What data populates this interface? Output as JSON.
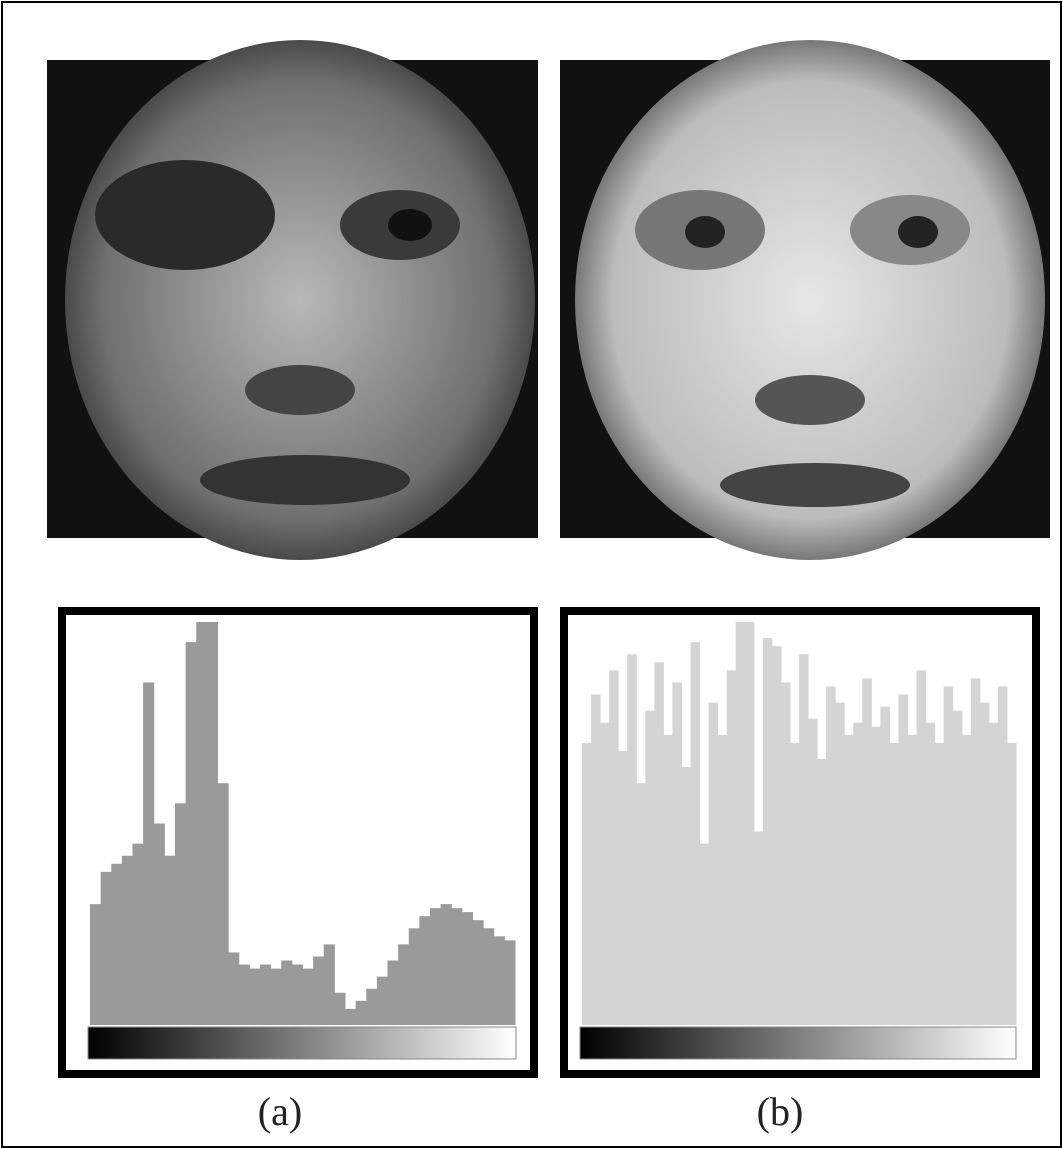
{
  "captions": [
    "(a)",
    "(b)"
  ],
  "chart_data": [
    {
      "type": "bar",
      "color": "#9a9a9a",
      "ylim": [
        0,
        100
      ],
      "categories": [
        null,
        null,
        null,
        null,
        null,
        null,
        null,
        null,
        null,
        null,
        null,
        null,
        null,
        null,
        null,
        null,
        null,
        null,
        null,
        null,
        null,
        null,
        null,
        null,
        null,
        null,
        null,
        null,
        null,
        null,
        null,
        null,
        null,
        null,
        null,
        null,
        null,
        null,
        null,
        null
      ],
      "values": [
        30,
        38,
        40,
        42,
        45,
        85,
        50,
        42,
        55,
        95,
        100,
        100,
        60,
        18,
        15,
        14,
        15,
        14,
        16,
        15,
        14,
        17,
        20,
        8,
        4,
        6,
        9,
        12,
        16,
        20,
        24,
        27,
        29,
        30,
        29,
        28,
        26,
        24,
        22,
        21
      ]
    },
    {
      "type": "bar",
      "color": "#d4d4d4",
      "ylim": [
        0,
        100
      ],
      "categories": [
        null,
        null,
        null,
        null,
        null,
        null,
        null,
        null,
        null,
        null,
        null,
        null,
        null,
        null,
        null,
        null,
        null,
        null,
        null,
        null,
        null,
        null,
        null,
        null,
        null,
        null,
        null,
        null,
        null,
        null,
        null,
        null,
        null,
        null,
        null,
        null,
        null,
        null,
        null,
        null,
        null,
        null,
        null,
        null,
        null,
        null,
        null,
        null
      ],
      "values": [
        70,
        82,
        75,
        88,
        68,
        92,
        60,
        78,
        90,
        72,
        85,
        64,
        95,
        45,
        80,
        72,
        88,
        100,
        100,
        48,
        96,
        94,
        85,
        70,
        92,
        76,
        66,
        84,
        80,
        72,
        75,
        86,
        74,
        79,
        70,
        82,
        72,
        88,
        75,
        70,
        84,
        78,
        72,
        86,
        80,
        75,
        84,
        70
      ]
    }
  ]
}
